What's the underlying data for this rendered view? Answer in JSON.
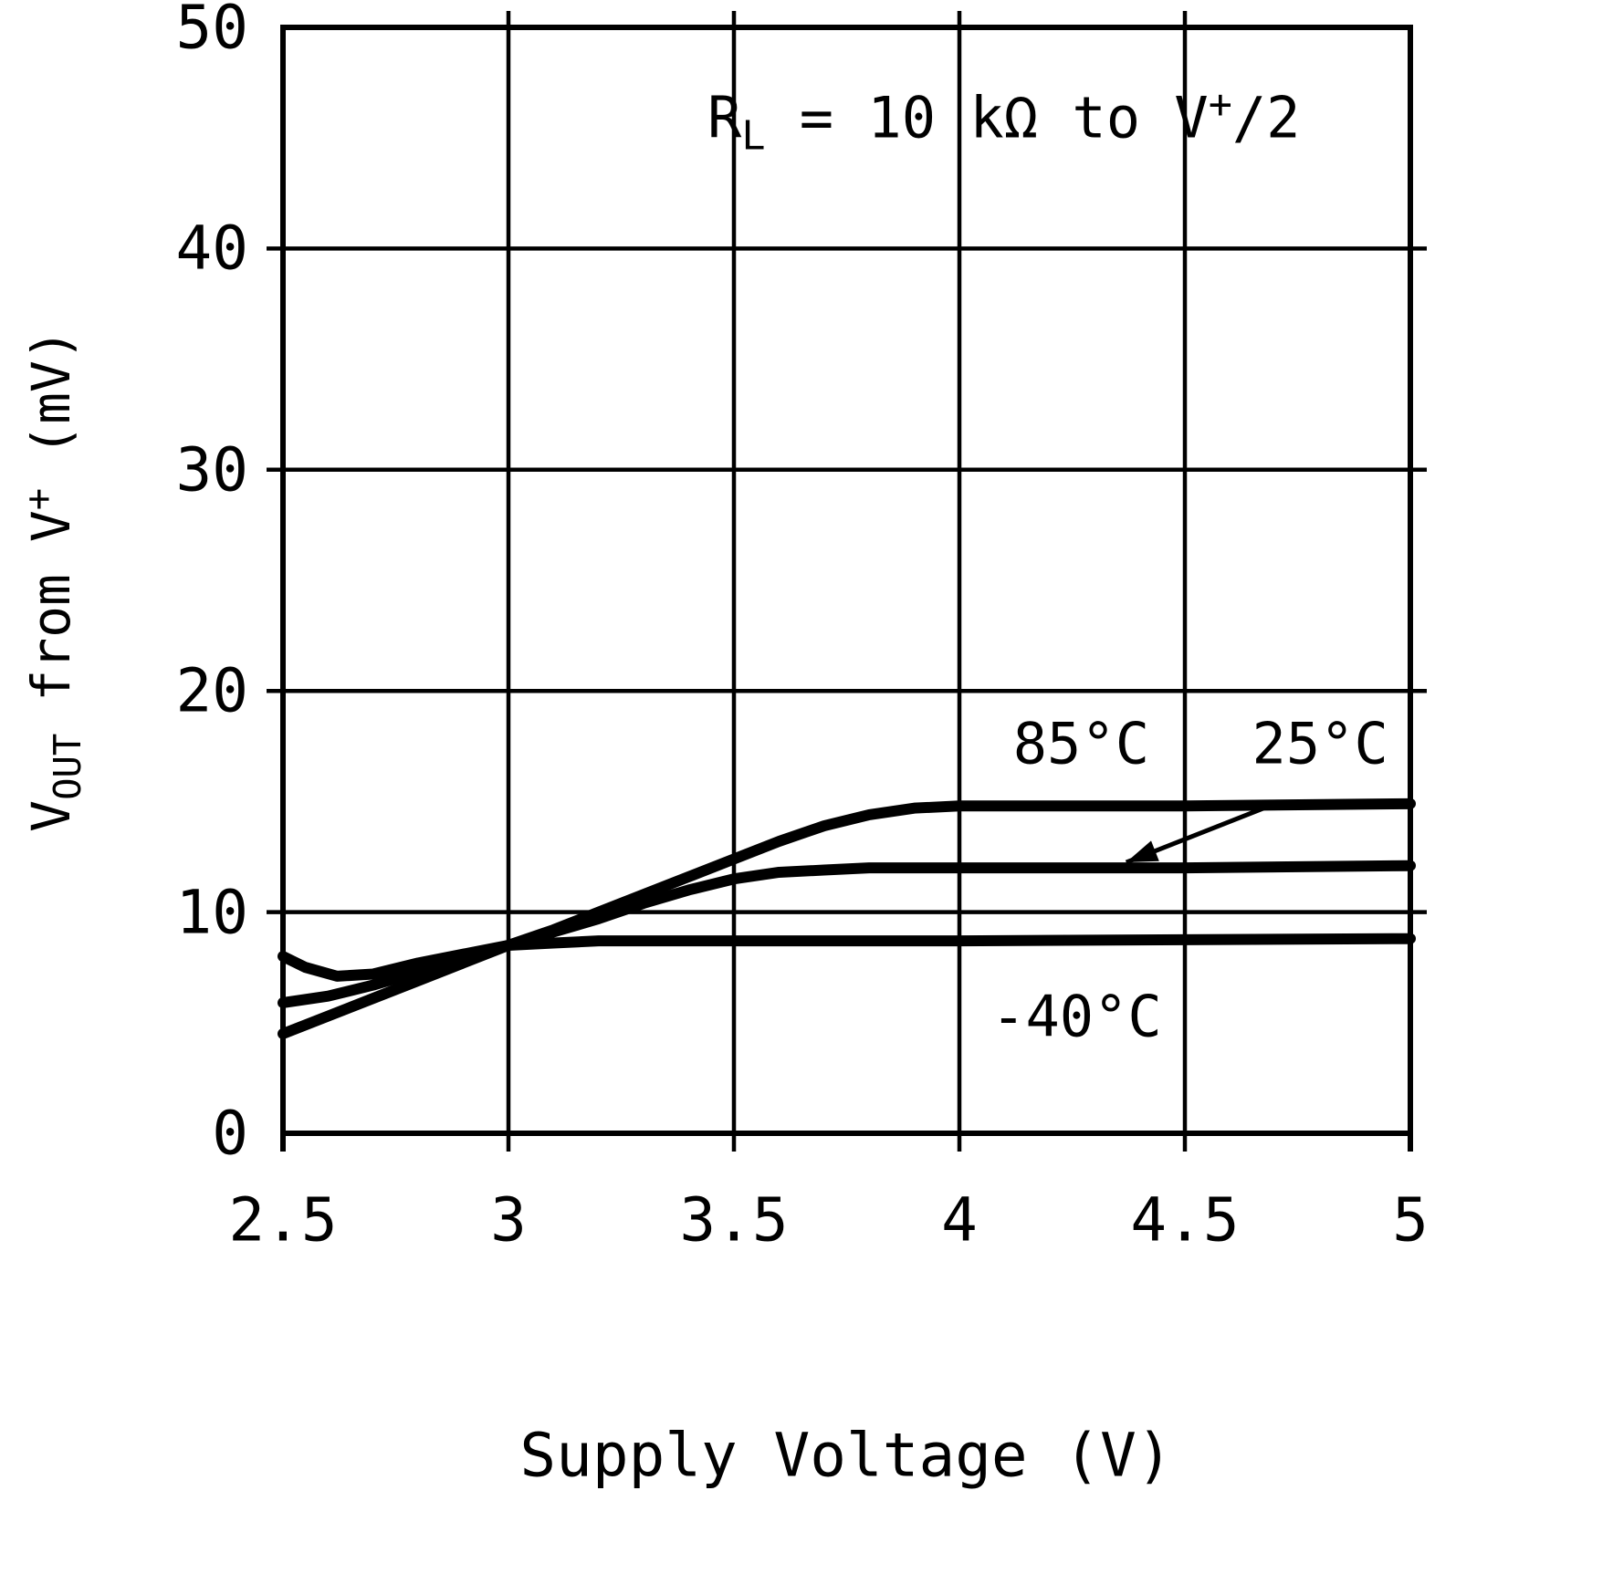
{
  "colors": {
    "foreground": "#000000",
    "background": "#ffffff"
  },
  "annotation": {
    "r": "R",
    "r_sub": "L",
    "mid": " = 10 kΩ to V",
    "sup": "+",
    "end": "/2"
  },
  "ylabel_parts": {
    "pre": "V",
    "sub": "OUT",
    "mid": " from V",
    "sup": "+",
    "post": " (mV)"
  },
  "chart_data": {
    "type": "line",
    "title": "",
    "xlabel": "Supply Voltage (V)",
    "ylabel": "VOUT from V+ (mV)",
    "xlim": [
      2.5,
      5
    ],
    "ylim": [
      0,
      50
    ],
    "grid": true,
    "legend_position": "inline-labels",
    "x_ticks": [
      2.5,
      3,
      3.5,
      4,
      4.5,
      5
    ],
    "x_tick_labels": [
      "2.5",
      "3",
      "3.5",
      "4",
      "4.5",
      "5"
    ],
    "y_ticks": [
      0,
      10,
      20,
      30,
      40,
      50
    ],
    "y_tick_labels": [
      "0",
      "10",
      "20",
      "30",
      "40",
      "50"
    ],
    "condition_annotation": "RL = 10 kΩ to V+/2",
    "series": [
      {
        "name": "85°C",
        "x": [
          2.5,
          2.6,
          2.7,
          2.8,
          2.9,
          3.0,
          3.1,
          3.2,
          3.3,
          3.4,
          3.5,
          3.6,
          3.7,
          3.8,
          3.9,
          4.0,
          4.25,
          4.5,
          5.0
        ],
        "y": [
          4.5,
          5.3,
          6.1,
          6.9,
          7.7,
          8.5,
          9.2,
          10.0,
          10.8,
          11.6,
          12.4,
          13.2,
          13.9,
          14.4,
          14.7,
          14.8,
          14.8,
          14.8,
          14.9
        ]
      },
      {
        "name": "25°C",
        "x": [
          2.5,
          2.6,
          2.7,
          2.8,
          2.9,
          3.0,
          3.1,
          3.2,
          3.3,
          3.4,
          3.5,
          3.6,
          3.7,
          3.8,
          4.0,
          4.5,
          5.0
        ],
        "y": [
          5.9,
          6.2,
          6.7,
          7.3,
          7.9,
          8.5,
          9.1,
          9.7,
          10.4,
          11.0,
          11.5,
          11.8,
          11.9,
          12.0,
          12.0,
          12.0,
          12.1
        ]
      },
      {
        "name": "-40°C",
        "x": [
          2.5,
          2.55,
          2.62,
          2.7,
          2.8,
          2.9,
          3.0,
          3.1,
          3.2,
          3.5,
          4.0,
          4.5,
          5.0
        ],
        "y": [
          8.0,
          7.5,
          7.1,
          7.2,
          7.7,
          8.1,
          8.5,
          8.6,
          8.7,
          8.7,
          8.7,
          8.75,
          8.8
        ]
      }
    ],
    "curve_labels": [
      {
        "text": "85°C",
        "x": 4.27,
        "y": 17.6
      },
      {
        "text": "25°C",
        "x": 4.8,
        "y": 17.6
      },
      {
        "text": "-40°C",
        "x": 4.26,
        "y": 5.3
      }
    ],
    "arrow": {
      "from": {
        "x": 4.7,
        "y": 14.9
      },
      "to": {
        "x": 4.37,
        "y": 12.25
      }
    }
  }
}
